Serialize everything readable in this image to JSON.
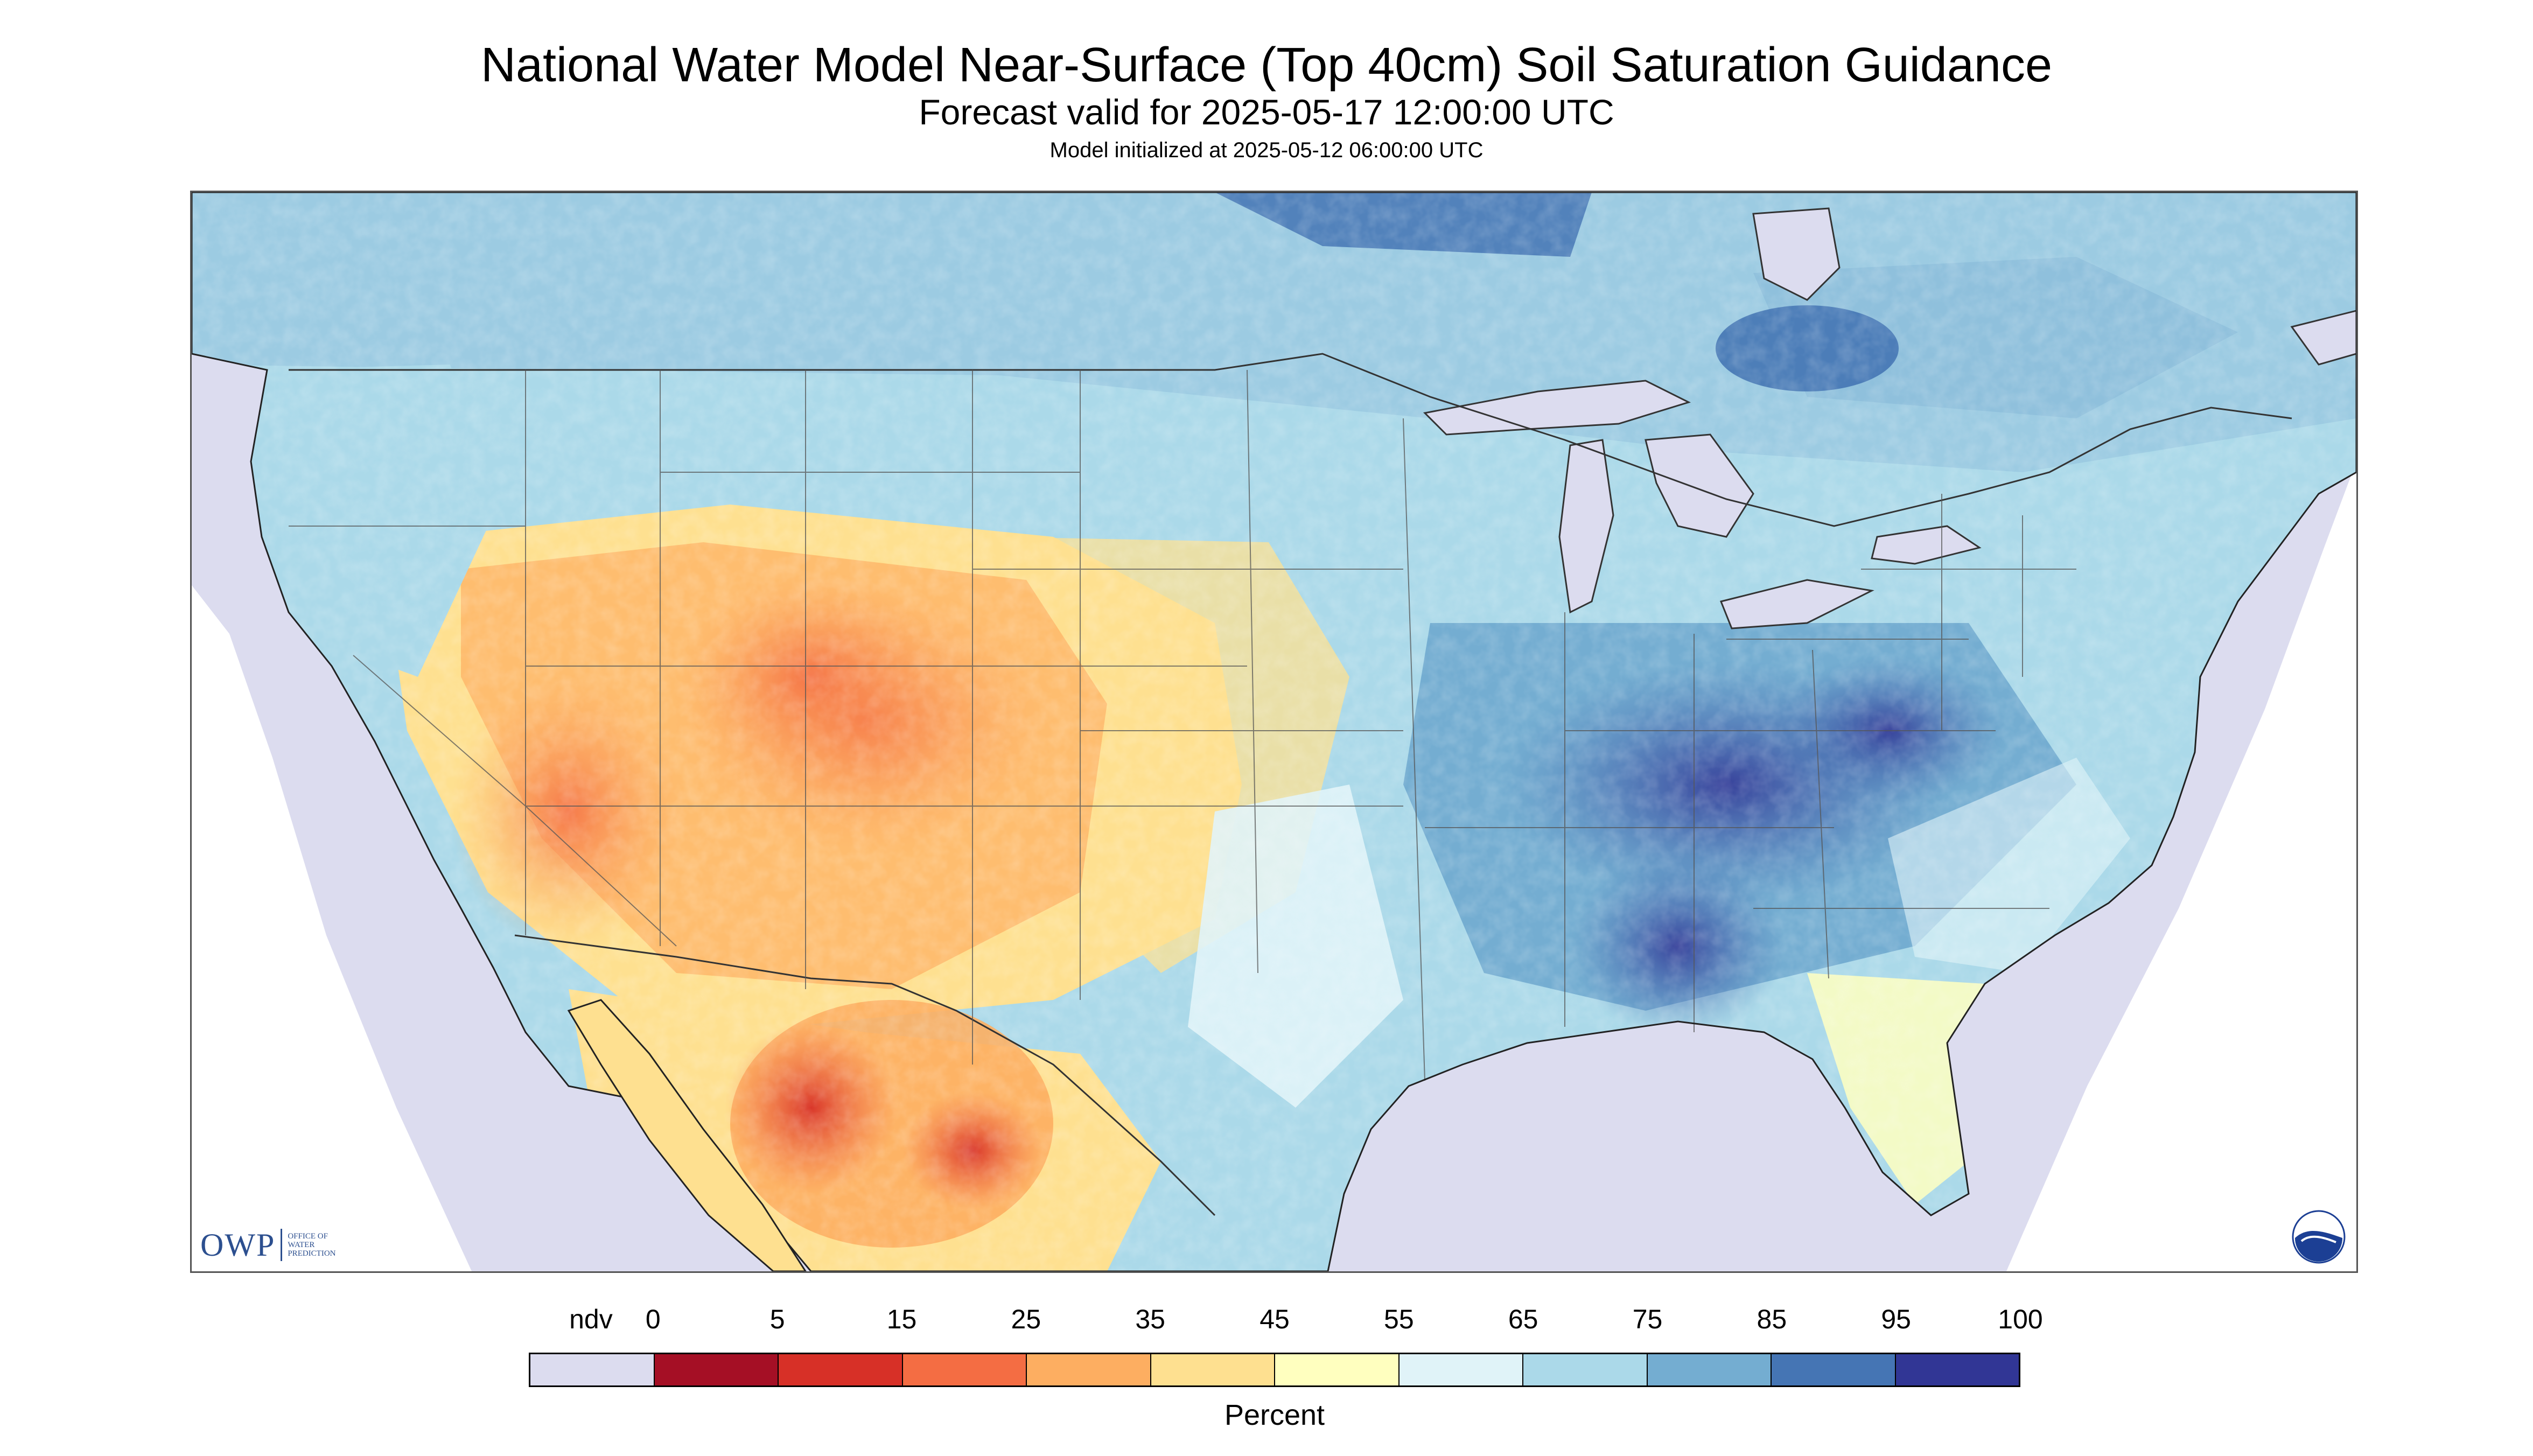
{
  "header": {
    "title": "National Water Model Near-Surface (Top 40cm) Soil Saturation Guidance",
    "subtitle": "Forecast valid for 2025-05-17 12:00:00 UTC",
    "init": "Model initialized at 2025-05-12 06:00:00 UTC"
  },
  "map": {
    "region": "Contiguous United States",
    "variable": "Near-surface (top 40cm) soil saturation",
    "no_data_color": "#dcdcef",
    "water_color": "#dcdcef"
  },
  "legend": {
    "ticks": [
      "ndv",
      "0",
      "5",
      "15",
      "25",
      "35",
      "45",
      "55",
      "65",
      "75",
      "85",
      "95",
      "100"
    ],
    "colors": [
      "#dcdcef",
      "#a50f25",
      "#d73027",
      "#f46d43",
      "#fdae61",
      "#fee090",
      "#ffffbf",
      "#e0f3f8",
      "#abd9e9",
      "#74add1",
      "#4575b4",
      "#313695"
    ],
    "unit_label": "Percent"
  },
  "logos": {
    "owp_mark": "OWP",
    "owp_text": [
      "OFFICE OF",
      "WATER",
      "PREDICTION"
    ],
    "noaa_icon": "noaa-logo-icon"
  }
}
